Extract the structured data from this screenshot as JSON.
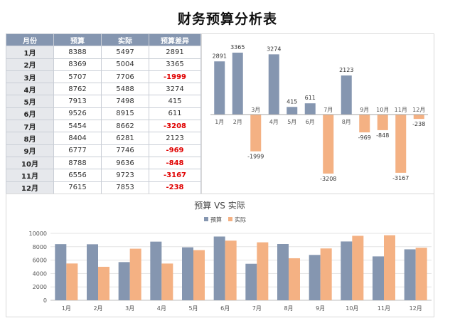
{
  "title": "财务预算分析表",
  "table": {
    "headers": [
      "月份",
      "预算",
      "实际",
      "预算差异"
    ],
    "rows": [
      {
        "month": "1月",
        "budget": "8388",
        "actual": "5497",
        "diff": "2891"
      },
      {
        "month": "2月",
        "budget": "8369",
        "actual": "5004",
        "diff": "3365"
      },
      {
        "month": "3月",
        "budget": "5707",
        "actual": "7706",
        "diff": "-1999"
      },
      {
        "month": "4月",
        "budget": "8762",
        "actual": "5488",
        "diff": "3274"
      },
      {
        "month": "5月",
        "budget": "7913",
        "actual": "7498",
        "diff": "415"
      },
      {
        "month": "6月",
        "budget": "9526",
        "actual": "8915",
        "diff": "611"
      },
      {
        "month": "7月",
        "budget": "5454",
        "actual": "8662",
        "diff": "-3208"
      },
      {
        "month": "8月",
        "budget": "8404",
        "actual": "6281",
        "diff": "2123"
      },
      {
        "month": "9月",
        "budget": "6777",
        "actual": "7746",
        "diff": "-969"
      },
      {
        "month": "10月",
        "budget": "8788",
        "actual": "9636",
        "diff": "-848"
      },
      {
        "month": "11月",
        "budget": "6556",
        "actual": "9723",
        "diff": "-3167"
      },
      {
        "month": "12月",
        "budget": "7615",
        "actual": "7853",
        "diff": "-238"
      }
    ]
  },
  "colors": {
    "budget": "#8596b0",
    "actual": "#f4b183",
    "negative_text": "#e00000"
  },
  "chart_data": [
    {
      "type": "bar",
      "title": "",
      "categories": [
        "1月",
        "2月",
        "3月",
        "4月",
        "5月",
        "6月",
        "7月",
        "8月",
        "9月",
        "10月",
        "11月",
        "12月"
      ],
      "values": [
        2891,
        3365,
        -1999,
        3274,
        415,
        611,
        -3208,
        2123,
        -969,
        -848,
        -3167,
        -238
      ],
      "data_labels": [
        "2891",
        "3365",
        "-1999",
        "3274",
        "415",
        "611",
        "-3208",
        "2123",
        "-969",
        "-848",
        "-3167",
        "-238"
      ],
      "positive_color": "#8596b0",
      "negative_color": "#f4b183",
      "grid": false,
      "legend": "none"
    },
    {
      "type": "bar",
      "title": "预算 VS 实际",
      "categories": [
        "1月",
        "2月",
        "3月",
        "4月",
        "5月",
        "6月",
        "7月",
        "8月",
        "9月",
        "10月",
        "11月",
        "12月"
      ],
      "series": [
        {
          "name": "预算",
          "color": "#8596b0",
          "values": [
            8388,
            8369,
            5707,
            8762,
            7913,
            9526,
            5454,
            8404,
            6777,
            8788,
            6556,
            7615
          ]
        },
        {
          "name": "实际",
          "color": "#f4b183",
          "values": [
            5497,
            5004,
            7706,
            5488,
            7498,
            8915,
            8662,
            6281,
            7746,
            9636,
            9723,
            7853
          ]
        }
      ],
      "ylim": [
        0,
        10000
      ],
      "yticks": [
        "0",
        "2000",
        "4000",
        "6000",
        "8000",
        "10000"
      ],
      "grid": true,
      "legend": "top-center"
    }
  ]
}
